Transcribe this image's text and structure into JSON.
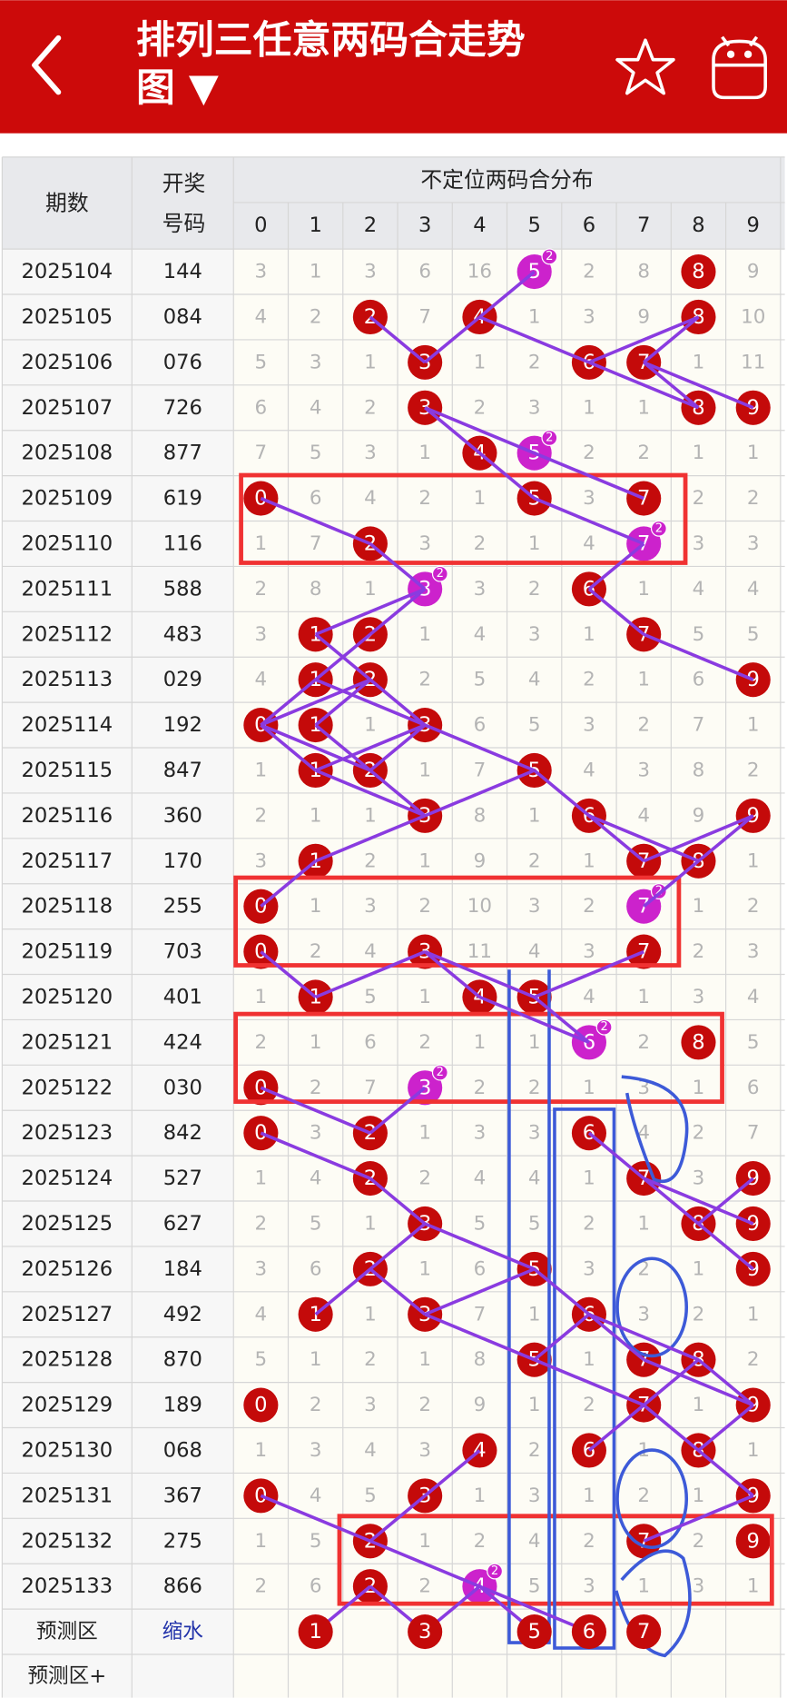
{
  "header": {
    "title": "排列三任意两码合走势图 ▼"
  },
  "table": {
    "columns": {
      "period": "期数",
      "number": "开奖号码",
      "distribution": "不定位两码合分布",
      "digits": [
        0,
        1,
        2,
        3,
        4,
        5,
        6,
        7,
        8,
        9
      ]
    },
    "double_badge": 2,
    "rows": [
      {
        "period": "2025104",
        "number": "144",
        "cells": [
          3,
          1,
          3,
          6,
          16,
          5,
          2,
          8,
          8,
          9
        ],
        "hits": [
          8
        ],
        "doubles": [
          5
        ]
      },
      {
        "period": "2025105",
        "number": "084",
        "cells": [
          4,
          2,
          2,
          7,
          4,
          1,
          3,
          9,
          8,
          10
        ],
        "hits": [
          2,
          4,
          8
        ]
      },
      {
        "period": "2025106",
        "number": "076",
        "cells": [
          5,
          3,
          1,
          3,
          1,
          2,
          6,
          7,
          1,
          11
        ],
        "hits": [
          3,
          6,
          7
        ]
      },
      {
        "period": "2025107",
        "number": "726",
        "cells": [
          6,
          4,
          2,
          3,
          2,
          3,
          1,
          1,
          8,
          9
        ],
        "hits": [
          3,
          8,
          9
        ]
      },
      {
        "period": "2025108",
        "number": "877",
        "cells": [
          7,
          5,
          3,
          1,
          4,
          5,
          2,
          2,
          1,
          1
        ],
        "hits": [
          4
        ],
        "doubles": [
          5
        ]
      },
      {
        "period": "2025109",
        "number": "619",
        "cells": [
          0,
          6,
          4,
          2,
          1,
          5,
          3,
          7,
          2,
          2
        ],
        "hits": [
          0,
          5,
          7
        ]
      },
      {
        "period": "2025110",
        "number": "116",
        "cells": [
          1,
          7,
          2,
          3,
          2,
          1,
          4,
          7,
          3,
          3
        ],
        "hits": [
          2
        ],
        "doubles": [
          7
        ]
      },
      {
        "period": "2025111",
        "number": "588",
        "cells": [
          2,
          8,
          1,
          3,
          3,
          2,
          6,
          1,
          4,
          4
        ],
        "hits": [
          6
        ],
        "doubles": [
          3
        ]
      },
      {
        "period": "2025112",
        "number": "483",
        "cells": [
          3,
          1,
          2,
          1,
          4,
          3,
          1,
          7,
          5,
          5
        ],
        "hits": [
          1,
          2,
          7
        ]
      },
      {
        "period": "2025113",
        "number": "029",
        "cells": [
          4,
          1,
          2,
          2,
          5,
          4,
          2,
          1,
          6,
          9
        ],
        "hits": [
          1,
          2,
          9
        ]
      },
      {
        "period": "2025114",
        "number": "192",
        "cells": [
          0,
          1,
          1,
          3,
          6,
          5,
          3,
          2,
          7,
          1
        ],
        "hits": [
          0,
          1,
          3
        ]
      },
      {
        "period": "2025115",
        "number": "847",
        "cells": [
          1,
          1,
          2,
          1,
          7,
          5,
          4,
          3,
          8,
          2
        ],
        "hits": [
          1,
          2,
          5
        ]
      },
      {
        "period": "2025116",
        "number": "360",
        "cells": [
          2,
          1,
          1,
          3,
          8,
          1,
          6,
          4,
          9,
          9
        ],
        "hits": [
          3,
          6,
          9
        ]
      },
      {
        "period": "2025117",
        "number": "170",
        "cells": [
          3,
          1,
          2,
          1,
          9,
          2,
          1,
          7,
          8,
          1
        ],
        "hits": [
          1,
          7,
          8
        ]
      },
      {
        "period": "2025118",
        "number": "255",
        "cells": [
          0,
          1,
          3,
          2,
          10,
          3,
          2,
          7,
          1,
          2
        ],
        "hits": [
          0
        ],
        "doubles": [
          7
        ]
      },
      {
        "period": "2025119",
        "number": "703",
        "cells": [
          0,
          2,
          4,
          3,
          11,
          4,
          3,
          7,
          2,
          3
        ],
        "hits": [
          0,
          3,
          7
        ]
      },
      {
        "period": "2025120",
        "number": "401",
        "cells": [
          1,
          1,
          5,
          1,
          4,
          5,
          4,
          1,
          3,
          4
        ],
        "hits": [
          1,
          4,
          5
        ]
      },
      {
        "period": "2025121",
        "number": "424",
        "cells": [
          2,
          1,
          6,
          2,
          1,
          1,
          6,
          2,
          8,
          5
        ],
        "hits": [
          8
        ],
        "doubles": [
          6
        ]
      },
      {
        "period": "2025122",
        "number": "030",
        "cells": [
          0,
          2,
          7,
          3,
          2,
          2,
          1,
          3,
          1,
          6
        ],
        "hits": [
          0
        ],
        "doubles": [
          3
        ]
      },
      {
        "period": "2025123",
        "number": "842",
        "cells": [
          0,
          3,
          2,
          1,
          3,
          3,
          6,
          4,
          2,
          7
        ],
        "hits": [
          0,
          2,
          6
        ]
      },
      {
        "period": "2025124",
        "number": "527",
        "cells": [
          1,
          4,
          2,
          2,
          4,
          4,
          1,
          7,
          3,
          9
        ],
        "hits": [
          2,
          7,
          9
        ]
      },
      {
        "period": "2025125",
        "number": "627",
        "cells": [
          2,
          5,
          1,
          3,
          5,
          5,
          2,
          1,
          8,
          9
        ],
        "hits": [
          3,
          8,
          9
        ]
      },
      {
        "period": "2025126",
        "number": "184",
        "cells": [
          3,
          6,
          2,
          1,
          6,
          5,
          3,
          2,
          1,
          9
        ],
        "hits": [
          2,
          5,
          9
        ]
      },
      {
        "period": "2025127",
        "number": "492",
        "cells": [
          4,
          1,
          1,
          3,
          7,
          1,
          6,
          3,
          2,
          1
        ],
        "hits": [
          1,
          3,
          6
        ]
      },
      {
        "period": "2025128",
        "number": "870",
        "cells": [
          5,
          1,
          2,
          1,
          8,
          5,
          1,
          7,
          8,
          2
        ],
        "hits": [
          5,
          7,
          8
        ]
      },
      {
        "period": "2025129",
        "number": "189",
        "cells": [
          0,
          2,
          3,
          2,
          9,
          1,
          2,
          7,
          1,
          9
        ],
        "hits": [
          0,
          7,
          9
        ]
      },
      {
        "period": "2025130",
        "number": "068",
        "cells": [
          1,
          3,
          4,
          3,
          4,
          2,
          6,
          1,
          8,
          1
        ],
        "hits": [
          4,
          6,
          8
        ]
      },
      {
        "period": "2025131",
        "number": "367",
        "cells": [
          0,
          4,
          5,
          3,
          1,
          3,
          1,
          2,
          1,
          9
        ],
        "hits": [
          0,
          3,
          9
        ]
      },
      {
        "period": "2025132",
        "number": "275",
        "cells": [
          1,
          5,
          2,
          1,
          2,
          4,
          2,
          7,
          2,
          9
        ],
        "hits": [
          2,
          7,
          9
        ]
      },
      {
        "period": "2025133",
        "number": "866",
        "cells": [
          2,
          6,
          2,
          2,
          4,
          5,
          3,
          1,
          3,
          1
        ],
        "hits": [
          2
        ],
        "doubles": [
          4
        ]
      }
    ],
    "forecast": {
      "label": "预测区",
      "number": "缩水",
      "cells": [
        null,
        1,
        null,
        3,
        null,
        5,
        6,
        7,
        null,
        null
      ],
      "hits": [
        1,
        3,
        5,
        6,
        7
      ]
    },
    "forecast_plus": {
      "label": "预测区+"
    }
  }
}
